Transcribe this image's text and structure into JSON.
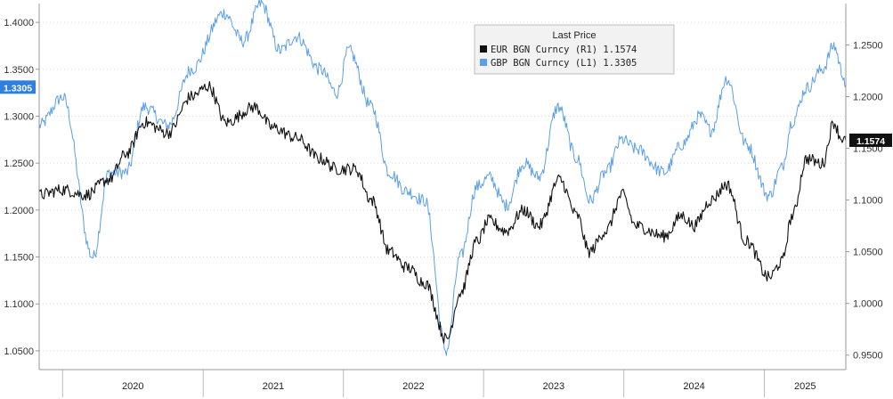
{
  "chart_data": {
    "type": "line",
    "title": "",
    "x_range": [
      "2019-11-01",
      "2025-08-01"
    ],
    "x_tick_labels": [
      "2020",
      "2021",
      "2022",
      "2023",
      "2024",
      "2025"
    ],
    "left_axis": {
      "ylim": [
        1.03,
        1.42
      ],
      "tick_labels": [
        "1.4000",
        "1.3500",
        "1.3000",
        "1.2500",
        "1.2000",
        "1.1500",
        "1.1000",
        "1.0500"
      ],
      "tick_values": [
        1.4,
        1.35,
        1.3,
        1.25,
        1.2,
        1.15,
        1.1,
        1.05
      ]
    },
    "right_axis": {
      "ylim": [
        0.936,
        1.29
      ],
      "tick_labels": [
        "1.2500",
        "1.2000",
        "1.1500",
        "1.1000",
        "1.0500",
        "1.0000",
        "0.9500"
      ],
      "tick_values": [
        1.25,
        1.2,
        1.15,
        1.1,
        1.05,
        1.0,
        0.95
      ]
    },
    "legend": {
      "title": "Last Price",
      "placement": "top-center",
      "items": [
        "EUR BGN Curncy  (R1) 1.1574",
        "GBP BGN Curncy  (L1) 1.3305"
      ]
    },
    "series": [
      {
        "name": "EUR BGN Curncy",
        "axis": "right",
        "color": "#111111",
        "last_value_label": "1.1574",
        "points": [
          [
            "2019-11-01",
            1.105
          ],
          [
            "2020-01-01",
            1.11
          ],
          [
            "2020-03-01",
            1.105
          ],
          [
            "2020-05-01",
            1.12
          ],
          [
            "2020-06-15",
            1.145
          ],
          [
            "2020-08-01",
            1.175
          ],
          [
            "2020-10-01",
            1.165
          ],
          [
            "2020-12-01",
            1.2
          ],
          [
            "2021-01-15",
            1.21
          ],
          [
            "2021-03-01",
            1.175
          ],
          [
            "2021-05-15",
            1.19
          ],
          [
            "2021-07-01",
            1.17
          ],
          [
            "2021-09-01",
            1.16
          ],
          [
            "2021-11-01",
            1.14
          ],
          [
            "2021-12-15",
            1.13
          ],
          [
            "2022-02-01",
            1.13
          ],
          [
            "2022-03-15",
            1.1
          ],
          [
            "2022-05-01",
            1.05
          ],
          [
            "2022-06-15",
            1.035
          ],
          [
            "2022-08-01",
            1.02
          ],
          [
            "2022-09-27",
            0.965
          ],
          [
            "2022-11-01",
            1.01
          ],
          [
            "2022-12-15",
            1.06
          ],
          [
            "2023-01-15",
            1.08
          ],
          [
            "2023-03-01",
            1.07
          ],
          [
            "2023-04-15",
            1.09
          ],
          [
            "2023-05-25",
            1.075
          ],
          [
            "2023-07-18",
            1.12
          ],
          [
            "2023-09-01",
            1.085
          ],
          [
            "2023-10-03",
            1.05
          ],
          [
            "2023-11-15",
            1.07
          ],
          [
            "2023-12-28",
            1.105
          ],
          [
            "2024-02-01",
            1.075
          ],
          [
            "2024-04-15",
            1.065
          ],
          [
            "2024-06-01",
            1.085
          ],
          [
            "2024-07-01",
            1.075
          ],
          [
            "2024-08-15",
            1.1
          ],
          [
            "2024-09-25",
            1.115
          ],
          [
            "2024-11-15",
            1.06
          ],
          [
            "2025-01-13",
            1.025
          ],
          [
            "2025-02-15",
            1.04
          ],
          [
            "2025-03-15",
            1.085
          ],
          [
            "2025-04-21",
            1.14
          ],
          [
            "2025-06-01",
            1.135
          ],
          [
            "2025-07-01",
            1.175
          ],
          [
            "2025-07-20",
            1.16
          ],
          [
            "2025-08-01",
            1.1574
          ]
        ]
      },
      {
        "name": "GBP BGN Curncy",
        "axis": "left",
        "color": "#5a9fe8",
        "last_value_label": "1.3305",
        "points": [
          [
            "2019-11-01",
            1.29
          ],
          [
            "2020-01-01",
            1.32
          ],
          [
            "2020-03-20",
            1.15
          ],
          [
            "2020-05-01",
            1.24
          ],
          [
            "2020-06-15",
            1.24
          ],
          [
            "2020-08-01",
            1.31
          ],
          [
            "2020-10-01",
            1.29
          ],
          [
            "2020-12-01",
            1.35
          ],
          [
            "2021-02-24",
            1.41
          ],
          [
            "2021-04-15",
            1.38
          ],
          [
            "2021-06-01",
            1.42
          ],
          [
            "2021-07-20",
            1.37
          ],
          [
            "2021-09-01",
            1.385
          ],
          [
            "2021-11-01",
            1.35
          ],
          [
            "2021-12-15",
            1.325
          ],
          [
            "2022-01-15",
            1.37
          ],
          [
            "2022-03-15",
            1.31
          ],
          [
            "2022-05-01",
            1.24
          ],
          [
            "2022-06-15",
            1.22
          ],
          [
            "2022-08-01",
            1.21
          ],
          [
            "2022-09-26",
            1.05
          ],
          [
            "2022-11-01",
            1.15
          ],
          [
            "2022-12-15",
            1.225
          ],
          [
            "2023-01-15",
            1.235
          ],
          [
            "2023-03-01",
            1.205
          ],
          [
            "2023-04-15",
            1.25
          ],
          [
            "2023-05-25",
            1.235
          ],
          [
            "2023-07-14",
            1.31
          ],
          [
            "2023-09-01",
            1.255
          ],
          [
            "2023-10-05",
            1.21
          ],
          [
            "2023-11-15",
            1.24
          ],
          [
            "2023-12-28",
            1.275
          ],
          [
            "2024-02-01",
            1.265
          ],
          [
            "2024-04-15",
            1.24
          ],
          [
            "2024-06-01",
            1.27
          ],
          [
            "2024-07-17",
            1.3
          ],
          [
            "2024-08-15",
            1.285
          ],
          [
            "2024-09-25",
            1.34
          ],
          [
            "2024-11-15",
            1.27
          ],
          [
            "2025-01-13",
            1.215
          ],
          [
            "2025-02-15",
            1.245
          ],
          [
            "2025-03-15",
            1.295
          ],
          [
            "2025-04-21",
            1.33
          ],
          [
            "2025-06-01",
            1.35
          ],
          [
            "2025-07-01",
            1.375
          ],
          [
            "2025-07-25",
            1.345
          ],
          [
            "2025-08-01",
            1.3305
          ]
        ]
      }
    ]
  }
}
